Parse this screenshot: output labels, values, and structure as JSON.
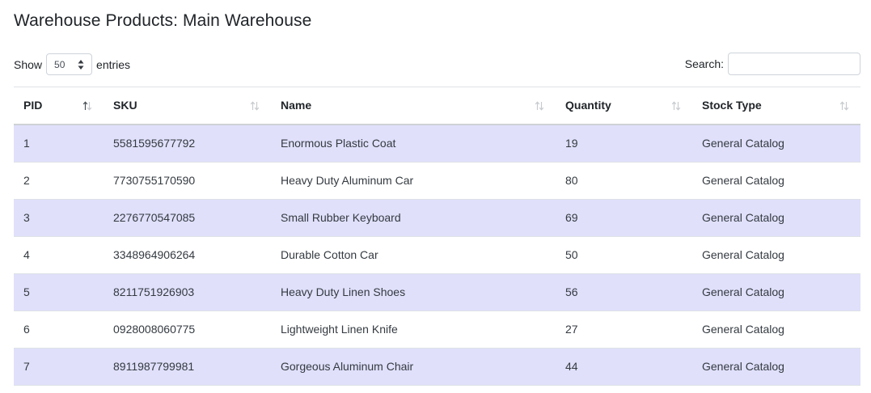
{
  "page": {
    "title": "Warehouse Products: Main Warehouse"
  },
  "length": {
    "show_label": "Show",
    "selected": "50",
    "entries_label": "entries"
  },
  "search": {
    "label": "Search:",
    "value": "",
    "placeholder": ""
  },
  "table": {
    "columns": [
      {
        "key": "pid",
        "label": "PID",
        "sorted": "asc"
      },
      {
        "key": "sku",
        "label": "SKU",
        "sorted": "none"
      },
      {
        "key": "name",
        "label": "Name",
        "sorted": "none"
      },
      {
        "key": "quantity",
        "label": "Quantity",
        "sorted": "none"
      },
      {
        "key": "stock_type",
        "label": "Stock Type",
        "sorted": "none"
      }
    ],
    "rows": [
      {
        "pid": "1",
        "sku": "5581595677792",
        "name": "Enormous Plastic Coat",
        "quantity": "19",
        "stock_type": "General Catalog"
      },
      {
        "pid": "2",
        "sku": "7730755170590",
        "name": "Heavy Duty Aluminum Car",
        "quantity": "80",
        "stock_type": "General Catalog"
      },
      {
        "pid": "3",
        "sku": "2276770547085",
        "name": "Small Rubber Keyboard",
        "quantity": "69",
        "stock_type": "General Catalog"
      },
      {
        "pid": "4",
        "sku": "3348964906264",
        "name": "Durable Cotton Car",
        "quantity": "50",
        "stock_type": "General Catalog"
      },
      {
        "pid": "5",
        "sku": "8211751926903",
        "name": "Heavy Duty Linen Shoes",
        "quantity": "56",
        "stock_type": "General Catalog"
      },
      {
        "pid": "6",
        "sku": "0928008060775",
        "name": "Lightweight Linen Knife",
        "quantity": "27",
        "stock_type": "General Catalog"
      },
      {
        "pid": "7",
        "sku": "8911987799981",
        "name": "Gorgeous Aluminum Chair",
        "quantity": "44",
        "stock_type": "General Catalog"
      }
    ]
  },
  "colors": {
    "stripe": "#e0e0fb",
    "sort_active": "#495057",
    "sort_inactive": "#c8cbcf"
  }
}
